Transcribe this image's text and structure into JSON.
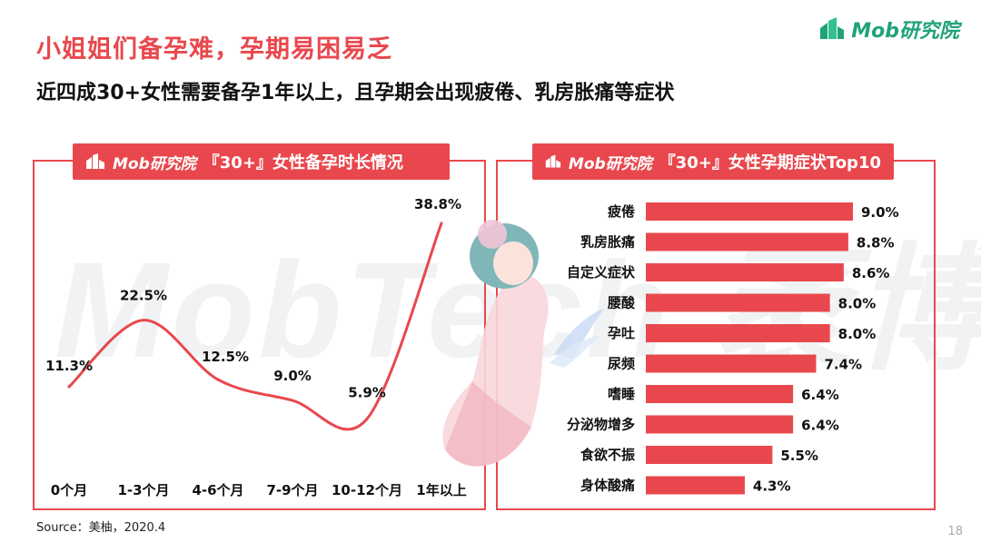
{
  "header": {
    "title": "小姐姐们备孕难，孕期易困易乏",
    "subtitle": "近四成30+女性需要备孕1年以上，且孕期会出现疲倦、乳房胀痛等症状",
    "logo_text": "Mob研究院"
  },
  "watermark": "MobTech 袤博",
  "colors": {
    "accent": "#e8484d",
    "brand": "#1fa27a"
  },
  "chart_data": [
    {
      "type": "line",
      "panel_logo": "Mob研究院",
      "title": "『30+』女性备孕时长情况",
      "categories": [
        "0个月",
        "1-3个月",
        "4-6个月",
        "7-9个月",
        "10-12个月",
        "1年以上"
      ],
      "values": [
        11.3,
        22.5,
        12.5,
        9.0,
        5.9,
        38.8
      ],
      "value_labels": [
        "11.3%",
        "22.5%",
        "12.5%",
        "9.0%",
        "5.9%",
        "38.8%"
      ],
      "smooth": true,
      "grid": false
    },
    {
      "type": "bar",
      "orientation": "horizontal",
      "panel_logo": "Mob研究院",
      "title": "『30+』女性孕期症状Top10",
      "categories": [
        "疲倦",
        "乳房胀痛",
        "自定义症状",
        "腰酸",
        "孕吐",
        "尿频",
        "嗜睡",
        "分泌物增多",
        "食欲不振",
        "身体酸痛"
      ],
      "values": [
        9.0,
        8.8,
        8.6,
        8.0,
        8.0,
        7.4,
        6.4,
        6.4,
        5.5,
        4.3
      ],
      "value_labels": [
        "9.0%",
        "8.8%",
        "8.6%",
        "8.0%",
        "8.0%",
        "7.4%",
        "6.4%",
        "6.4%",
        "5.5%",
        "4.3%"
      ]
    }
  ],
  "footer": {
    "source": "Source：美柚，2020.4",
    "page": "18"
  }
}
